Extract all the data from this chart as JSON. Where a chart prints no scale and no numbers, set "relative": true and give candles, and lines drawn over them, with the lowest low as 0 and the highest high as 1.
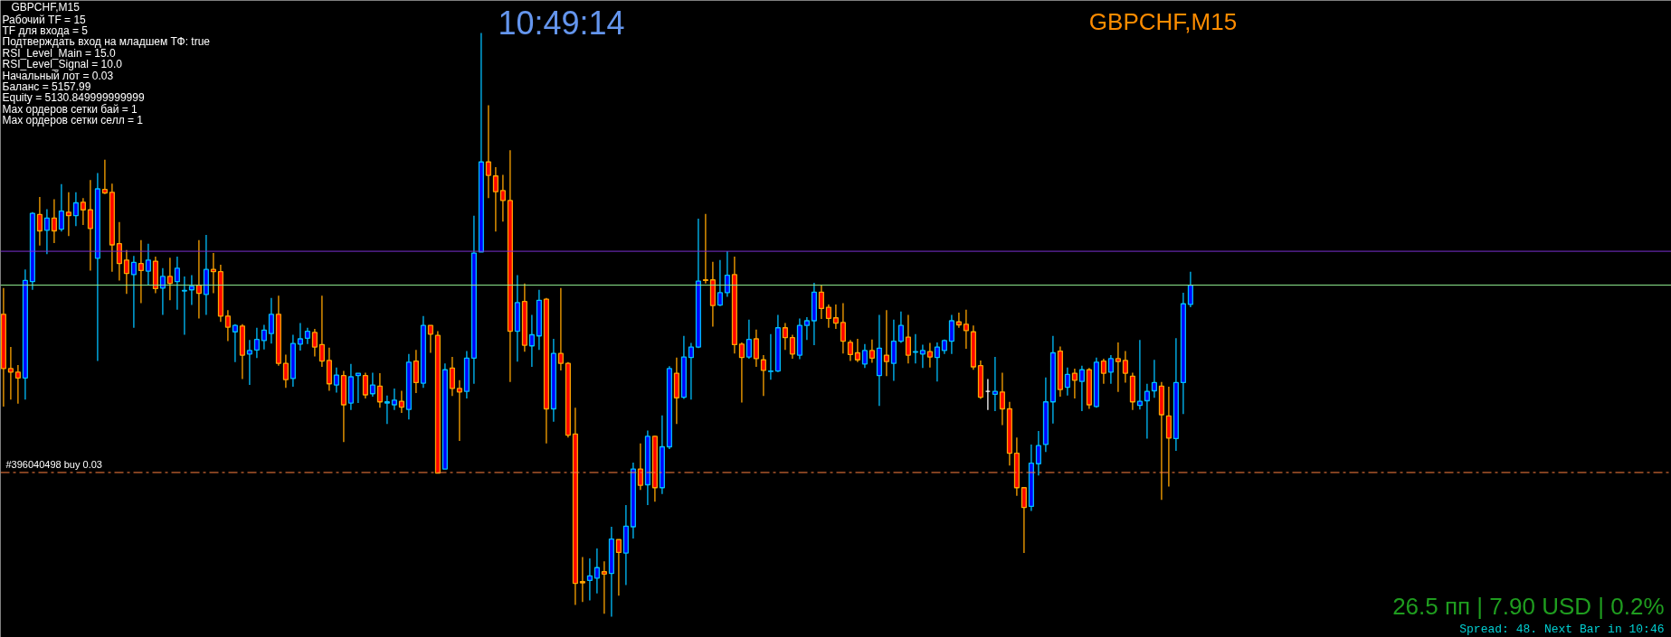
{
  "chart_data": {
    "type": "candlestick",
    "relative": true,
    "title": "GBPCHF,M15",
    "annotations": [
      "Рабочий TF = 15",
      "TF для входа = 5",
      "Подтверждать вход на младшем ТФ: true",
      "RSI_Level_Main = 15.0",
      "RSI_Level_Signal = 10.0",
      "Начальный лот  = 0.03",
      "Баланс = 5157.99",
      "Equity = 5130.849999999999",
      "Max ордеров сетки бай = 1",
      "Max ордеров сетки селл = 1",
      "10:49:14",
      "GBPCHF,M15",
      "26.5 пп | 7.90 USD | 0.2%",
      "Spread: 48. Next Bar in 10:46"
    ],
    "ref_lines": [
      {
        "axis": "y",
        "value": 0.626,
        "color": "#7b2fd0",
        "line_style": "solid"
      },
      {
        "axis": "y",
        "value": 0.568,
        "color": "#90ee90",
        "line_style": "solid"
      },
      {
        "axis": "y",
        "value": 0.247,
        "label": "#396040498 buy 0.03",
        "color": "#ff7f3f",
        "line_style": "dashdot"
      }
    ],
    "categories": [
      null,
      null,
      null,
      null,
      null,
      null,
      null,
      null,
      null,
      null,
      null,
      null,
      null,
      null,
      null,
      null,
      null,
      null,
      null,
      null,
      null,
      null,
      null,
      null,
      null,
      null,
      null,
      null,
      null,
      null,
      null,
      null,
      null,
      null,
      null,
      null,
      null,
      null,
      null,
      null,
      null,
      null,
      null,
      null,
      null,
      null,
      null,
      null,
      null,
      null,
      null,
      null,
      null,
      null,
      null,
      null,
      null,
      null,
      null,
      null,
      null,
      null,
      null,
      null,
      null,
      null,
      null,
      null,
      null,
      null,
      null,
      null,
      null,
      null,
      null,
      null,
      null,
      null,
      null,
      null,
      null,
      null,
      null,
      null,
      null,
      null,
      null,
      null,
      null,
      null,
      null,
      null,
      null,
      null,
      null,
      null,
      null,
      null,
      null,
      null,
      null,
      null,
      null,
      null,
      null,
      null,
      null,
      null,
      null,
      null,
      null,
      null,
      null,
      null,
      null,
      null,
      null,
      null,
      null,
      null,
      null,
      null,
      null,
      null,
      null,
      null,
      null,
      null,
      null,
      null,
      null,
      null,
      null,
      null,
      null,
      null,
      null,
      null,
      null,
      null,
      null,
      null,
      null,
      null,
      null,
      null,
      null,
      null,
      null,
      null,
      null,
      null,
      null,
      null,
      null,
      null,
      null,
      null,
      null,
      null,
      null,
      null,
      null,
      null,
      null
    ],
    "ohlc": [
      [
        0.518,
        0.563,
        0.36,
        0.425
      ],
      [
        0.425,
        0.462,
        0.372,
        0.419
      ],
      [
        0.419,
        0.431,
        0.365,
        0.409
      ],
      [
        0.409,
        0.595,
        0.372,
        0.576
      ],
      [
        0.574,
        0.693,
        0.56,
        0.691
      ],
      [
        0.689,
        0.719,
        0.636,
        0.661
      ],
      [
        0.662,
        0.698,
        0.621,
        0.683
      ],
      [
        0.683,
        0.715,
        0.64,
        0.661
      ],
      [
        0.664,
        0.741,
        0.66,
        0.695
      ],
      [
        0.693,
        0.727,
        0.652,
        0.687
      ],
      [
        0.687,
        0.727,
        0.669,
        0.709
      ],
      [
        0.71,
        0.717,
        0.671,
        0.697
      ],
      [
        0.697,
        0.748,
        0.593,
        0.665
      ],
      [
        0.614,
        0.76,
        0.438,
        0.733
      ],
      [
        0.732,
        0.783,
        0.724,
        0.726
      ],
      [
        0.727,
        0.742,
        0.591,
        0.637
      ],
      [
        0.639,
        0.676,
        0.576,
        0.605
      ],
      [
        0.611,
        0.628,
        0.553,
        0.588
      ],
      [
        0.586,
        0.618,
        0.495,
        0.607
      ],
      [
        0.605,
        0.645,
        0.537,
        0.593
      ],
      [
        0.592,
        0.639,
        0.568,
        0.611
      ],
      [
        0.609,
        0.617,
        0.554,
        0.562
      ],
      [
        0.563,
        0.597,
        0.517,
        0.583
      ],
      [
        0.583,
        0.615,
        0.542,
        0.571
      ],
      [
        0.574,
        0.617,
        0.526,
        0.597
      ],
      [
        0.558,
        0.583,
        0.483,
        0.559
      ],
      [
        0.56,
        0.585,
        0.534,
        0.566
      ],
      [
        0.568,
        0.645,
        0.511,
        0.554
      ],
      [
        0.552,
        0.654,
        0.517,
        0.595
      ],
      [
        0.595,
        0.623,
        0.554,
        0.591
      ],
      [
        0.591,
        0.603,
        0.505,
        0.515
      ],
      [
        0.515,
        0.525,
        0.472,
        0.496
      ],
      [
        0.488,
        0.501,
        0.436,
        0.499
      ],
      [
        0.498,
        0.501,
        0.407,
        0.448
      ],
      [
        0.45,
        0.474,
        0.397,
        0.456
      ],
      [
        0.457,
        0.495,
        0.443,
        0.475
      ],
      [
        0.473,
        0.5,
        0.458,
        0.491
      ],
      [
        0.485,
        0.546,
        0.468,
        0.518
      ],
      [
        0.518,
        0.55,
        0.43,
        0.434
      ],
      [
        0.434,
        0.449,
        0.392,
        0.406
      ],
      [
        0.408,
        0.483,
        0.394,
        0.468
      ],
      [
        0.467,
        0.503,
        0.456,
        0.476
      ],
      [
        0.477,
        0.495,
        0.467,
        0.489
      ],
      [
        0.487,
        0.493,
        0.446,
        0.462
      ],
      [
        0.466,
        0.55,
        0.428,
        0.438
      ],
      [
        0.439,
        0.461,
        0.387,
        0.399
      ],
      [
        0.397,
        0.427,
        0.384,
        0.414
      ],
      [
        0.413,
        0.421,
        0.299,
        0.363
      ],
      [
        0.366,
        0.433,
        0.354,
        0.411
      ],
      [
        0.413,
        0.417,
        0.366,
        0.417
      ],
      [
        0.413,
        0.418,
        0.374,
        0.38
      ],
      [
        0.382,
        0.418,
        0.377,
        0.397
      ],
      [
        0.395,
        0.417,
        0.358,
        0.368
      ],
      [
        0.366,
        0.379,
        0.33,
        0.368
      ],
      [
        0.363,
        0.391,
        0.354,
        0.371
      ],
      [
        0.369,
        0.387,
        0.349,
        0.359
      ],
      [
        0.355,
        0.45,
        0.338,
        0.436
      ],
      [
        0.438,
        0.457,
        0.383,
        0.401
      ],
      [
        0.4,
        0.515,
        0.392,
        0.499
      ],
      [
        0.499,
        0.499,
        0.452,
        0.484
      ],
      [
        0.482,
        0.489,
        0.246,
        0.246
      ],
      [
        0.253,
        0.434,
        0.253,
        0.423
      ],
      [
        0.426,
        0.445,
        0.378,
        0.391
      ],
      [
        0.391,
        0.405,
        0.301,
        0.385
      ],
      [
        0.386,
        0.455,
        0.374,
        0.443
      ],
      [
        0.443,
        0.687,
        0.399,
        0.623
      ],
      [
        0.625,
        1.0,
        0.625,
        0.779
      ],
      [
        0.779,
        0.876,
        0.717,
        0.756
      ],
      [
        0.755,
        0.77,
        0.66,
        0.728
      ],
      [
        0.73,
        0.757,
        0.677,
        0.713
      ],
      [
        0.713,
        0.799,
        0.402,
        0.489
      ],
      [
        0.489,
        0.585,
        0.437,
        0.538
      ],
      [
        0.54,
        0.571,
        0.454,
        0.465
      ],
      [
        0.464,
        0.517,
        0.428,
        0.483
      ],
      [
        0.481,
        0.56,
        0.457,
        0.542
      ],
      [
        0.544,
        0.546,
        0.297,
        0.356
      ],
      [
        0.356,
        0.476,
        0.334,
        0.451
      ],
      [
        0.451,
        0.563,
        0.422,
        0.434
      ],
      [
        0.434,
        0.436,
        0.307,
        0.311
      ],
      [
        0.313,
        0.358,
        0.02,
        0.057
      ],
      [
        0.06,
        0.102,
        0.025,
        0.058
      ],
      [
        0.062,
        0.1,
        0.028,
        0.07
      ],
      [
        0.066,
        0.117,
        0.04,
        0.084
      ],
      [
        0.077,
        0.095,
        0.005,
        0.073
      ],
      [
        0.074,
        0.154,
        0.0,
        0.133
      ],
      [
        0.132,
        0.132,
        0.036,
        0.11
      ],
      [
        0.109,
        0.191,
        0.054,
        0.155
      ],
      [
        0.154,
        0.264,
        0.134,
        0.253
      ],
      [
        0.253,
        0.297,
        0.217,
        0.225
      ],
      [
        0.226,
        0.319,
        0.191,
        0.309
      ],
      [
        0.309,
        0.31,
        0.197,
        0.221
      ],
      [
        0.221,
        0.345,
        0.21,
        0.291
      ],
      [
        0.291,
        0.429,
        0.287,
        0.425
      ],
      [
        0.417,
        0.444,
        0.33,
        0.375
      ],
      [
        0.376,
        0.481,
        0.373,
        0.445
      ],
      [
        0.444,
        0.469,
        0.372,
        0.462
      ],
      [
        0.462,
        0.682,
        0.46,
        0.575
      ],
      [
        0.577,
        0.69,
        0.571,
        0.576
      ],
      [
        0.577,
        0.608,
        0.497,
        0.533
      ],
      [
        0.534,
        0.611,
        0.532,
        0.555
      ],
      [
        0.555,
        0.626,
        0.548,
        0.585
      ],
      [
        0.586,
        0.617,
        0.451,
        0.466
      ],
      [
        0.467,
        0.47,
        0.367,
        0.444
      ],
      [
        0.445,
        0.509,
        0.442,
        0.475
      ],
      [
        0.476,
        0.492,
        0.428,
        0.442
      ],
      [
        0.44,
        0.448,
        0.378,
        0.422
      ],
      [
        0.42,
        0.484,
        0.406,
        0.421
      ],
      [
        0.421,
        0.517,
        0.419,
        0.495
      ],
      [
        0.495,
        0.503,
        0.457,
        0.478
      ],
      [
        0.478,
        0.483,
        0.442,
        0.45
      ],
      [
        0.448,
        0.511,
        0.441,
        0.499
      ],
      [
        0.499,
        0.513,
        0.474,
        0.507
      ],
      [
        0.507,
        0.572,
        0.465,
        0.556
      ],
      [
        0.556,
        0.568,
        0.51,
        0.528
      ],
      [
        0.53,
        0.535,
        0.495,
        0.511
      ],
      [
        0.512,
        0.535,
        0.493,
        0.503
      ],
      [
        0.504,
        0.537,
        0.451,
        0.472
      ],
      [
        0.47,
        0.474,
        0.438,
        0.449
      ],
      [
        0.452,
        0.476,
        0.436,
        0.44
      ],
      [
        0.433,
        0.467,
        0.426,
        0.456
      ],
      [
        0.456,
        0.475,
        0.435,
        0.443
      ],
      [
        0.413,
        0.517,
        0.361,
        0.46
      ],
      [
        0.448,
        0.525,
        0.412,
        0.437
      ],
      [
        0.434,
        0.509,
        0.404,
        0.472
      ],
      [
        0.472,
        0.523,
        0.469,
        0.499
      ],
      [
        0.479,
        0.517,
        0.434,
        0.448
      ],
      [
        0.453,
        0.484,
        0.434,
        0.454
      ],
      [
        0.45,
        0.466,
        0.426,
        0.456
      ],
      [
        0.454,
        0.469,
        0.427,
        0.445
      ],
      [
        0.444,
        0.47,
        0.403,
        0.462
      ],
      [
        0.456,
        0.475,
        0.45,
        0.473
      ],
      [
        0.472,
        0.517,
        0.45,
        0.507
      ],
      [
        0.505,
        0.521,
        0.495,
        0.5
      ],
      [
        0.501,
        0.526,
        0.459,
        0.49
      ],
      [
        0.488,
        0.499,
        0.423,
        0.428
      ],
      [
        0.43,
        0.439,
        0.373,
        0.376
      ],
      [
        0.386,
        0.407,
        0.354,
        0.386
      ],
      [
        0.381,
        0.445,
        0.352,
        0.386
      ],
      [
        0.385,
        0.418,
        0.328,
        0.356
      ],
      [
        0.356,
        0.368,
        0.259,
        0.28
      ],
      [
        0.28,
        0.307,
        0.207,
        0.221
      ],
      [
        0.221,
        0.222,
        0.109,
        0.187
      ],
      [
        0.189,
        0.295,
        0.181,
        0.263
      ],
      [
        0.262,
        0.318,
        0.242,
        0.293
      ],
      [
        0.295,
        0.41,
        0.282,
        0.368
      ],
      [
        0.368,
        0.481,
        0.331,
        0.452
      ],
      [
        0.455,
        0.463,
        0.377,
        0.389
      ],
      [
        0.393,
        0.427,
        0.379,
        0.415
      ],
      [
        0.417,
        0.425,
        0.374,
        0.405
      ],
      [
        0.403,
        0.43,
        0.352,
        0.423
      ],
      [
        0.423,
        0.426,
        0.356,
        0.363
      ],
      [
        0.36,
        0.444,
        0.358,
        0.436
      ],
      [
        0.438,
        0.442,
        0.399,
        0.417
      ],
      [
        0.419,
        0.448,
        0.399,
        0.442
      ],
      [
        0.442,
        0.47,
        0.385,
        0.437
      ],
      [
        0.439,
        0.455,
        0.401,
        0.417
      ],
      [
        0.412,
        0.418,
        0.354,
        0.368
      ],
      [
        0.362,
        0.474,
        0.355,
        0.369
      ],
      [
        0.37,
        0.399,
        0.305,
        0.386
      ],
      [
        0.387,
        0.44,
        0.375,
        0.401
      ],
      [
        0.395,
        0.402,
        0.2,
        0.346
      ],
      [
        0.344,
        0.394,
        0.223,
        0.306
      ],
      [
        0.305,
        0.477,
        0.284,
        0.401
      ],
      [
        0.401,
        0.555,
        0.347,
        0.536
      ],
      [
        0.535,
        0.591,
        0.53,
        0.568
      ]
    ]
  }
}
